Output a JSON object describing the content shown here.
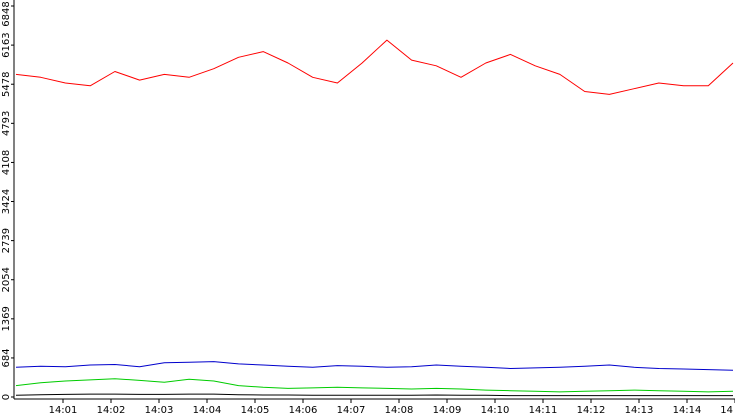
{
  "chart_data": {
    "type": "line",
    "title": "",
    "xlabel": "",
    "ylabel": "",
    "ylim": [
      0,
      6848
    ],
    "y_ticks": [
      0,
      684,
      1369,
      2054,
      2739,
      3424,
      4108,
      4793,
      5478,
      6163,
      6848
    ],
    "x_ticks": [
      "14:01",
      "14:02",
      "14:03",
      "14:04",
      "14:05",
      "14:06",
      "14:07",
      "14:08",
      "14:09",
      "14:10",
      "14:11",
      "14:12",
      "14:13",
      "14:14",
      "14"
    ],
    "x": [
      "14:00:36",
      "14:01",
      "14:01:30",
      "14:02",
      "14:02:30",
      "14:03",
      "14:03:30",
      "14:04",
      "14:04:30",
      "14:05",
      "14:05:30",
      "14:06",
      "14:06:30",
      "14:07",
      "14:07:30",
      "14:08",
      "14:08:30",
      "14:09",
      "14:09:30",
      "14:10",
      "14:10:30",
      "14:11",
      "14:11:30",
      "14:12",
      "14:12:30",
      "14:13",
      "14:13:30",
      "14:14",
      "14:14:30",
      "14:15"
    ],
    "grid": false,
    "legend": "none",
    "series": [
      {
        "color": "#ff0000",
        "values": [
          5650,
          5600,
          5500,
          5450,
          5700,
          5550,
          5650,
          5600,
          5750,
          5950,
          6050,
          5850,
          5600,
          5500,
          5850,
          6250,
          5900,
          5800,
          5600,
          5850,
          6000,
          5800,
          5650,
          5350,
          5300,
          5400,
          5500,
          5450,
          5450,
          5850
        ]
      },
      {
        "color": "#0000cc",
        "values": [
          520,
          540,
          530,
          560,
          570,
          530,
          600,
          610,
          620,
          580,
          560,
          540,
          520,
          550,
          540,
          520,
          530,
          560,
          540,
          520,
          500,
          510,
          520,
          540,
          560,
          520,
          500,
          490,
          480,
          470
        ]
      },
      {
        "color": "#00cc00",
        "values": [
          200,
          250,
          280,
          300,
          320,
          290,
          260,
          310,
          280,
          200,
          170,
          150,
          160,
          170,
          160,
          150,
          140,
          150,
          140,
          120,
          110,
          100,
          90,
          100,
          110,
          120,
          110,
          100,
          90,
          100
        ]
      },
      {
        "color": "#000000",
        "values": [
          30,
          40,
          45,
          50,
          50,
          45,
          45,
          50,
          50,
          40,
          35,
          35,
          30,
          30,
          30,
          30,
          30,
          35,
          30,
          30,
          25,
          25,
          25,
          25,
          25,
          25,
          25,
          25,
          25,
          25
        ]
      }
    ]
  }
}
